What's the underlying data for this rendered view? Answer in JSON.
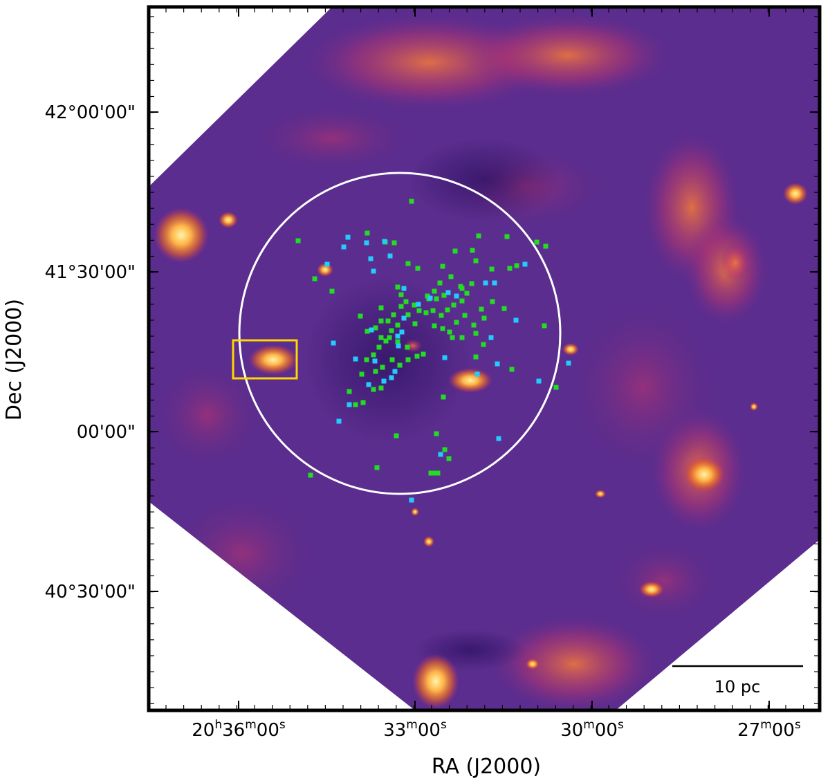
{
  "axes": {
    "xlabel": "RA (J2000)",
    "ylabel": "Dec (J2000)",
    "x_ticks": [
      {
        "h": "20",
        "m": "36",
        "s": "00",
        "show_h": true,
        "show_m": true
      },
      {
        "h": "",
        "m": "33",
        "s": "00",
        "show_h": false,
        "show_m": true
      },
      {
        "h": "",
        "m": "30",
        "s": "00",
        "show_h": false,
        "show_m": true
      },
      {
        "h": "",
        "m": "27",
        "s": "00",
        "show_h": false,
        "show_m": true
      }
    ],
    "y_ticks": [
      "42°00'00\"",
      "41°30'00\"",
      "00'00\"",
      "40°30'00\""
    ]
  },
  "scale_bar": {
    "label": "10 pc"
  },
  "colors": {
    "circle": "#ffffff",
    "highlight_box": "#ffd700",
    "marker_green": "#22dd22",
    "marker_cyan": "#22ccff",
    "frame": "#000000"
  }
}
